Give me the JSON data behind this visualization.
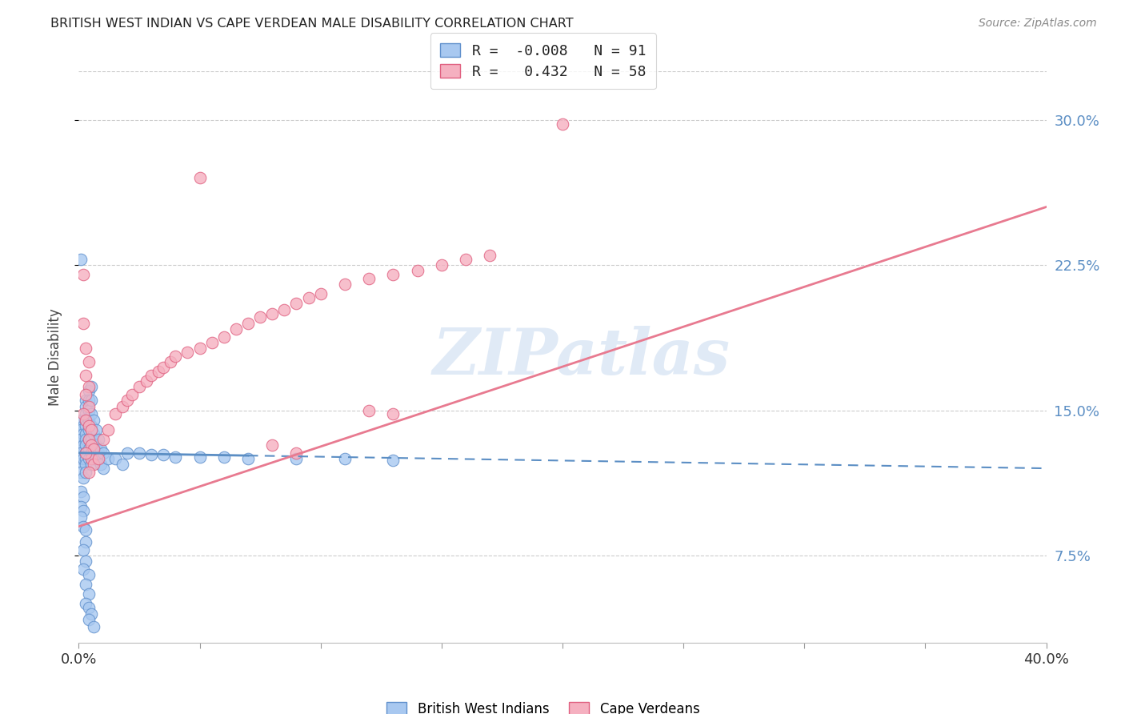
{
  "title": "BRITISH WEST INDIAN VS CAPE VERDEAN MALE DISABILITY CORRELATION CHART",
  "source": "Source: ZipAtlas.com",
  "ylabel_label": "Male Disability",
  "x_min": 0.0,
  "x_max": 0.4,
  "y_min": 0.03,
  "y_max": 0.325,
  "x_ticks": [
    0.0,
    0.05,
    0.1,
    0.15,
    0.2,
    0.25,
    0.3,
    0.35,
    0.4
  ],
  "x_tick_labels": [
    "0.0%",
    "",
    "",
    "",
    "",
    "",
    "",
    "",
    "40.0%"
  ],
  "y_ticks": [
    0.075,
    0.15,
    0.225,
    0.3
  ],
  "y_tick_labels": [
    "7.5%",
    "15.0%",
    "22.5%",
    "30.0%"
  ],
  "bwi_color": "#a8c8f0",
  "cv_color": "#f5b0c0",
  "bwi_edge_color": "#6090cc",
  "cv_edge_color": "#e06080",
  "bwi_line_color": "#5b8ec4",
  "cv_line_color": "#e87a90",
  "bwi_R": -0.008,
  "bwi_N": 91,
  "cv_R": 0.432,
  "cv_N": 58,
  "legend_label_bwi": "British West Indians",
  "legend_label_cv": "Cape Verdeans",
  "watermark": "ZIPatlas",
  "background_color": "#ffffff",
  "grid_color": "#cccccc",
  "bwi_line_intercept": 0.128,
  "bwi_line_slope": -0.02,
  "cv_line_x0": 0.0,
  "cv_line_y0": 0.09,
  "cv_line_x1": 0.4,
  "cv_line_y1": 0.255,
  "bwi_scatter": [
    [
      0.001,
      0.228
    ],
    [
      0.002,
      0.135
    ],
    [
      0.001,
      0.13
    ],
    [
      0.002,
      0.128
    ],
    [
      0.001,
      0.125
    ],
    [
      0.002,
      0.122
    ],
    [
      0.001,
      0.118
    ],
    [
      0.002,
      0.115
    ],
    [
      0.001,
      0.145
    ],
    [
      0.002,
      0.142
    ],
    [
      0.001,
      0.14
    ],
    [
      0.002,
      0.138
    ],
    [
      0.001,
      0.135
    ],
    [
      0.002,
      0.132
    ],
    [
      0.001,
      0.128
    ],
    [
      0.002,
      0.125
    ],
    [
      0.003,
      0.155
    ],
    [
      0.003,
      0.152
    ],
    [
      0.003,
      0.148
    ],
    [
      0.003,
      0.145
    ],
    [
      0.003,
      0.142
    ],
    [
      0.003,
      0.138
    ],
    [
      0.003,
      0.135
    ],
    [
      0.003,
      0.132
    ],
    [
      0.003,
      0.128
    ],
    [
      0.003,
      0.125
    ],
    [
      0.003,
      0.122
    ],
    [
      0.003,
      0.118
    ],
    [
      0.004,
      0.16
    ],
    [
      0.004,
      0.155
    ],
    [
      0.004,
      0.15
    ],
    [
      0.004,
      0.145
    ],
    [
      0.004,
      0.14
    ],
    [
      0.004,
      0.135
    ],
    [
      0.004,
      0.13
    ],
    [
      0.004,
      0.125
    ],
    [
      0.005,
      0.162
    ],
    [
      0.005,
      0.155
    ],
    [
      0.005,
      0.148
    ],
    [
      0.005,
      0.142
    ],
    [
      0.005,
      0.135
    ],
    [
      0.005,
      0.128
    ],
    [
      0.005,
      0.122
    ],
    [
      0.006,
      0.145
    ],
    [
      0.006,
      0.138
    ],
    [
      0.006,
      0.132
    ],
    [
      0.006,
      0.125
    ],
    [
      0.007,
      0.14
    ],
    [
      0.007,
      0.132
    ],
    [
      0.007,
      0.125
    ],
    [
      0.008,
      0.135
    ],
    [
      0.008,
      0.128
    ],
    [
      0.009,
      0.13
    ],
    [
      0.009,
      0.122
    ],
    [
      0.01,
      0.128
    ],
    [
      0.01,
      0.12
    ],
    [
      0.012,
      0.125
    ],
    [
      0.015,
      0.125
    ],
    [
      0.018,
      0.122
    ],
    [
      0.001,
      0.108
    ],
    [
      0.002,
      0.105
    ],
    [
      0.001,
      0.1
    ],
    [
      0.002,
      0.098
    ],
    [
      0.001,
      0.095
    ],
    [
      0.002,
      0.09
    ],
    [
      0.003,
      0.088
    ],
    [
      0.003,
      0.082
    ],
    [
      0.002,
      0.078
    ],
    [
      0.003,
      0.072
    ],
    [
      0.002,
      0.068
    ],
    [
      0.004,
      0.065
    ],
    [
      0.003,
      0.06
    ],
    [
      0.004,
      0.055
    ],
    [
      0.003,
      0.05
    ],
    [
      0.004,
      0.048
    ],
    [
      0.005,
      0.045
    ],
    [
      0.004,
      0.042
    ],
    [
      0.006,
      0.038
    ],
    [
      0.02,
      0.128
    ],
    [
      0.025,
      0.128
    ],
    [
      0.03,
      0.127
    ],
    [
      0.035,
      0.127
    ],
    [
      0.04,
      0.126
    ],
    [
      0.05,
      0.126
    ],
    [
      0.06,
      0.126
    ],
    [
      0.07,
      0.125
    ],
    [
      0.09,
      0.125
    ],
    [
      0.11,
      0.125
    ],
    [
      0.13,
      0.124
    ]
  ],
  "cv_scatter": [
    [
      0.002,
      0.22
    ],
    [
      0.002,
      0.195
    ],
    [
      0.003,
      0.182
    ],
    [
      0.004,
      0.175
    ],
    [
      0.003,
      0.168
    ],
    [
      0.004,
      0.162
    ],
    [
      0.003,
      0.158
    ],
    [
      0.004,
      0.152
    ],
    [
      0.002,
      0.148
    ],
    [
      0.003,
      0.145
    ],
    [
      0.004,
      0.142
    ],
    [
      0.005,
      0.14
    ],
    [
      0.004,
      0.135
    ],
    [
      0.005,
      0.132
    ],
    [
      0.006,
      0.13
    ],
    [
      0.005,
      0.125
    ],
    [
      0.006,
      0.122
    ],
    [
      0.008,
      0.125
    ],
    [
      0.01,
      0.135
    ],
    [
      0.012,
      0.14
    ],
    [
      0.015,
      0.148
    ],
    [
      0.018,
      0.152
    ],
    [
      0.02,
      0.155
    ],
    [
      0.022,
      0.158
    ],
    [
      0.025,
      0.162
    ],
    [
      0.028,
      0.165
    ],
    [
      0.03,
      0.168
    ],
    [
      0.033,
      0.17
    ],
    [
      0.035,
      0.172
    ],
    [
      0.038,
      0.175
    ],
    [
      0.04,
      0.178
    ],
    [
      0.045,
      0.18
    ],
    [
      0.05,
      0.182
    ],
    [
      0.055,
      0.185
    ],
    [
      0.06,
      0.188
    ],
    [
      0.065,
      0.192
    ],
    [
      0.07,
      0.195
    ],
    [
      0.075,
      0.198
    ],
    [
      0.08,
      0.2
    ],
    [
      0.085,
      0.202
    ],
    [
      0.09,
      0.205
    ],
    [
      0.095,
      0.208
    ],
    [
      0.1,
      0.21
    ],
    [
      0.11,
      0.215
    ],
    [
      0.12,
      0.218
    ],
    [
      0.13,
      0.22
    ],
    [
      0.14,
      0.222
    ],
    [
      0.15,
      0.225
    ],
    [
      0.16,
      0.228
    ],
    [
      0.17,
      0.23
    ],
    [
      0.05,
      0.27
    ],
    [
      0.2,
      0.298
    ],
    [
      0.003,
      0.128
    ],
    [
      0.004,
      0.118
    ],
    [
      0.12,
      0.15
    ],
    [
      0.13,
      0.148
    ],
    [
      0.08,
      0.132
    ],
    [
      0.09,
      0.128
    ]
  ]
}
